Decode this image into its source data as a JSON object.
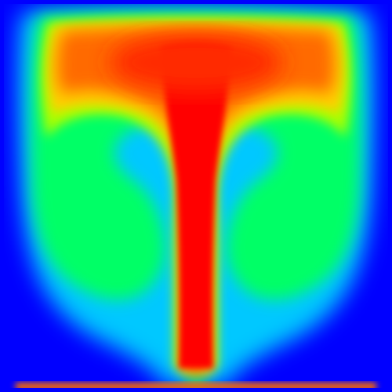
{
  "image": {
    "kind": "temperature-field-visualization",
    "subject": "rising-plume",
    "colormap": {
      "name": "jet",
      "stops": [
        "#0000ff",
        "#00c0ff",
        "#00ff80",
        "#80ff00",
        "#ffff00",
        "#ff8000",
        "#ff0000"
      ]
    },
    "colors": {
      "background": "#0000ff",
      "cold": "#0000ff",
      "cool": "#00c8ff",
      "mid": "#00ff66",
      "warm": "#a8ff00",
      "hotter": "#ffd000",
      "hot": "#ff6a00",
      "core": "#ff0000"
    }
  }
}
